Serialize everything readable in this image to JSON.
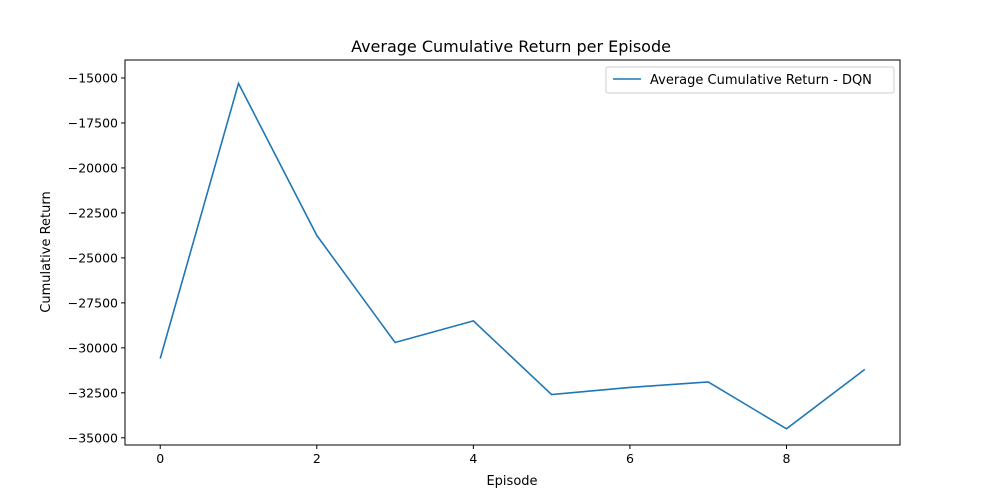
{
  "chart_data": {
    "type": "line",
    "title": "Average Cumulative Return per Episode",
    "xlabel": "Episode",
    "ylabel": "Cumulative Return",
    "xlim": [
      -0.45,
      9.45
    ],
    "ylim": [
      -35400,
      -14000
    ],
    "x_ticks": [
      0,
      2,
      4,
      6,
      8
    ],
    "x_tick_labels": [
      "0",
      "2",
      "4",
      "6",
      "8"
    ],
    "y_ticks": [
      -35000,
      -32500,
      -30000,
      -27500,
      -25000,
      -22500,
      -20000,
      -17500,
      -15000
    ],
    "y_tick_labels": [
      "−35000",
      "−32500",
      "−30000",
      "−27500",
      "−25000",
      "−22500",
      "−20000",
      "−17500",
      "−15000"
    ],
    "grid": false,
    "legend_position": "top-right",
    "series": [
      {
        "name": "Average Cumulative Return - DQN",
        "color": "#1f77b4",
        "x": [
          0,
          1,
          2,
          3,
          4,
          5,
          6,
          7,
          8,
          9
        ],
        "values": [
          -30600,
          -15300,
          -23750,
          -29700,
          -28500,
          -32600,
          -32200,
          -31900,
          -34500,
          -31200
        ]
      }
    ]
  }
}
